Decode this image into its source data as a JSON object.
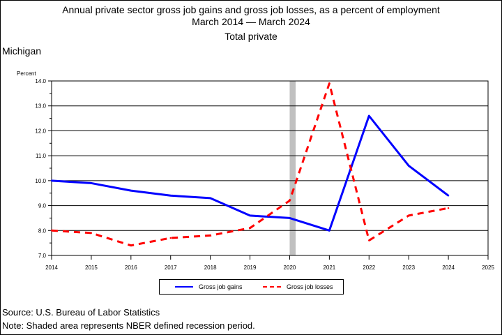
{
  "title": {
    "line1": "Annual private sector gross job gains and gross job losses, as a percent of employment",
    "line2": "March 2014 — March 2024",
    "line3": "Total private"
  },
  "region": "Michigan",
  "footer": {
    "source": "Source: U.S. Bureau of Labor Statistics",
    "note": "Note: Shaded area represents NBER defined recession period."
  },
  "chart_data": {
    "type": "line",
    "ylabel": "Percent",
    "xlim": [
      2014,
      2025
    ],
    "ylim": [
      7.0,
      14.0
    ],
    "x_ticks": [
      "2014",
      "2015",
      "2016",
      "2017",
      "2018",
      "2019",
      "2020",
      "2021",
      "2022",
      "2023",
      "2024",
      "2025"
    ],
    "y_ticks": [
      "7.0",
      "8.0",
      "9.0",
      "10.0",
      "11.0",
      "12.0",
      "13.0",
      "14.0"
    ],
    "grid": "horizontal",
    "recession": [
      2020.0,
      2020.15
    ],
    "series": [
      {
        "name": "Gross job gains",
        "color": "#0000ff",
        "style": "solid",
        "x": [
          2014,
          2015,
          2016,
          2017,
          2018,
          2019,
          2020,
          2021,
          2022,
          2023,
          2024
        ],
        "values": [
          10.0,
          9.9,
          9.6,
          9.4,
          9.3,
          8.6,
          8.5,
          8.0,
          12.6,
          10.6,
          9.4
        ]
      },
      {
        "name": "Gross job losses",
        "color": "#ff0000",
        "style": "dashed",
        "x": [
          2014,
          2015,
          2016,
          2017,
          2018,
          2019,
          2020,
          2021,
          2022,
          2023,
          2024
        ],
        "values": [
          8.0,
          7.9,
          7.4,
          7.7,
          7.8,
          8.1,
          9.2,
          13.9,
          7.6,
          8.6,
          8.9
        ]
      }
    ],
    "legend": "bottom"
  }
}
